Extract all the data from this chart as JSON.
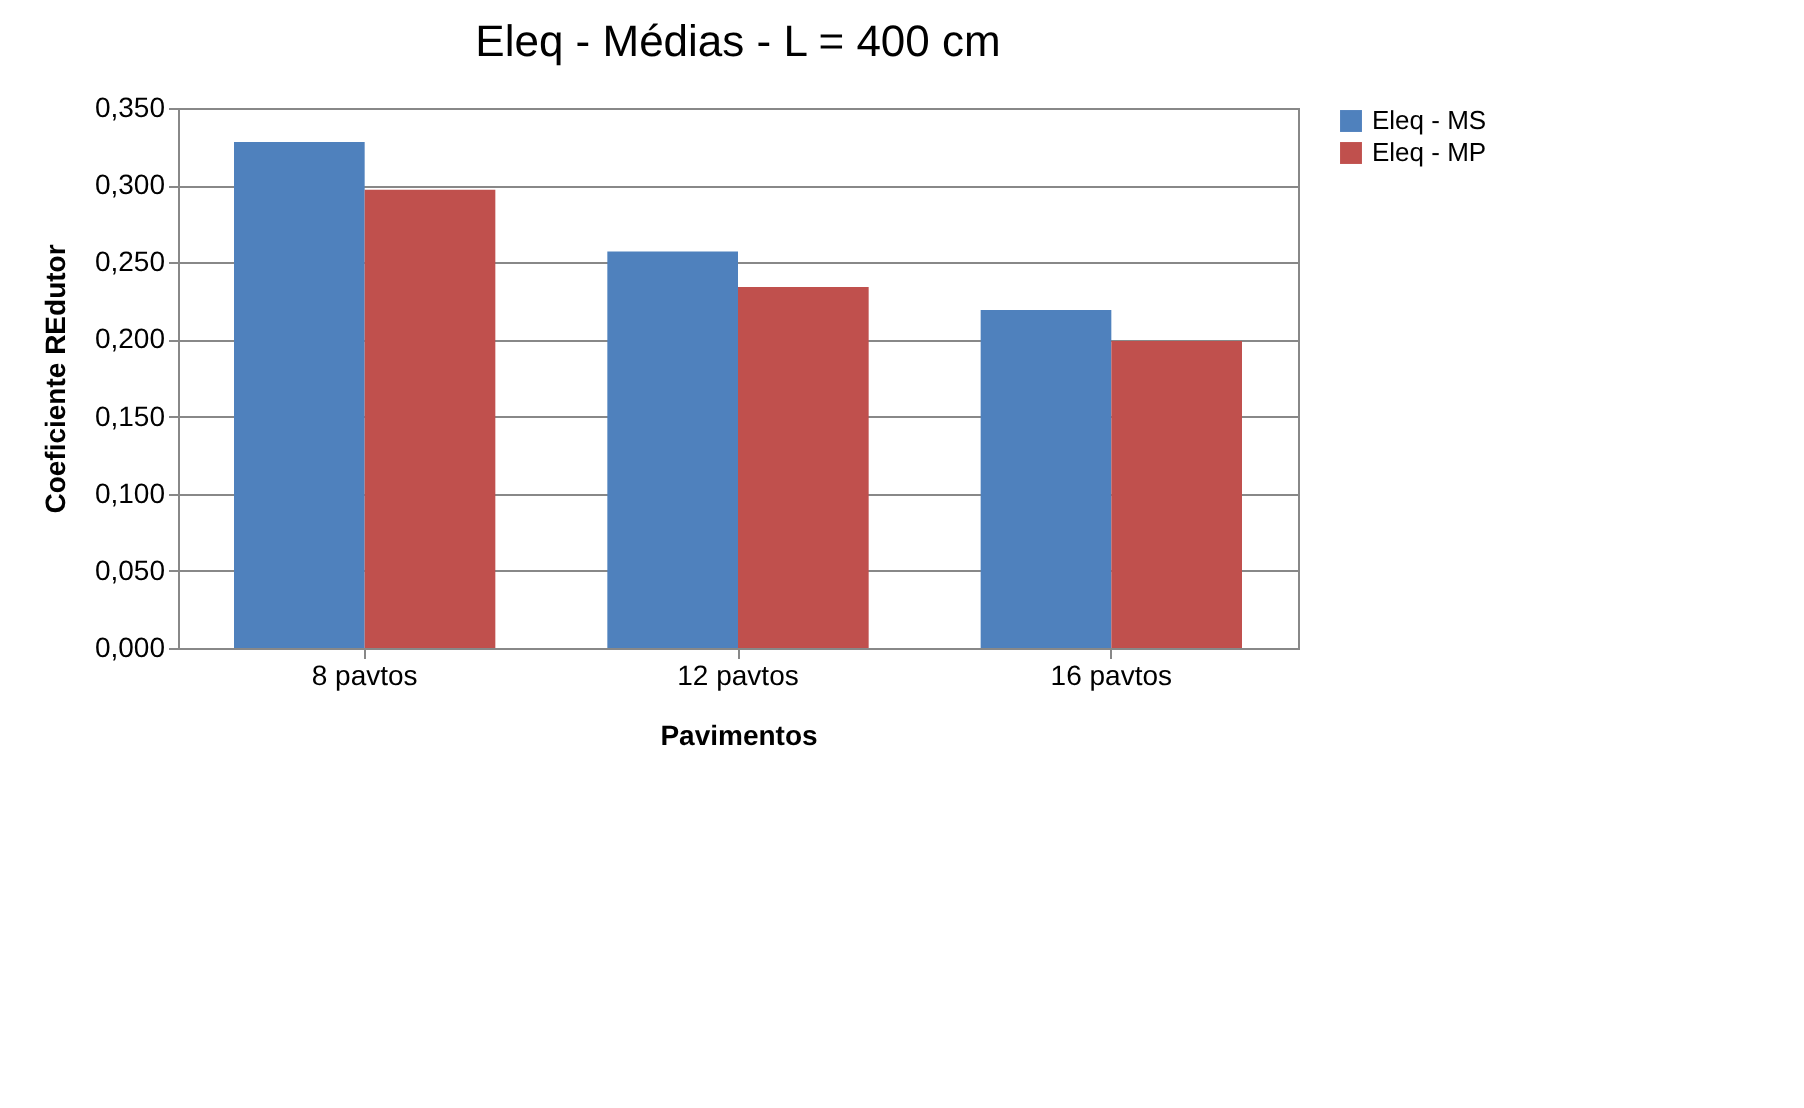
{
  "chart_data": {
    "type": "bar",
    "title": "Eleq - Médias - L = 400 cm",
    "xlabel": "Pavimentos",
    "ylabel": "Coeficiente REdutor",
    "categories": [
      "8 pavtos",
      "12 pavtos",
      "16 pavtos"
    ],
    "series": [
      {
        "name": "Eleq - MS",
        "color": "#4f81bd",
        "values": [
          0.328,
          0.257,
          0.219
        ]
      },
      {
        "name": "Eleq - MP",
        "color": "#c0504d",
        "values": [
          0.297,
          0.234,
          0.199
        ]
      }
    ],
    "ylim": [
      0,
      0.35
    ],
    "yticks": [
      {
        "value": 0,
        "label": "0,000"
      },
      {
        "value": 0.05,
        "label": "0,050"
      },
      {
        "value": 0.1,
        "label": "0,100"
      },
      {
        "value": 0.15,
        "label": "0,150"
      },
      {
        "value": 0.2,
        "label": "0,200"
      },
      {
        "value": 0.25,
        "label": "0,250"
      },
      {
        "value": 0.3,
        "label": "0,300"
      },
      {
        "value": 0.35,
        "label": "0,350"
      }
    ],
    "grid": "y",
    "legend": "right"
  }
}
